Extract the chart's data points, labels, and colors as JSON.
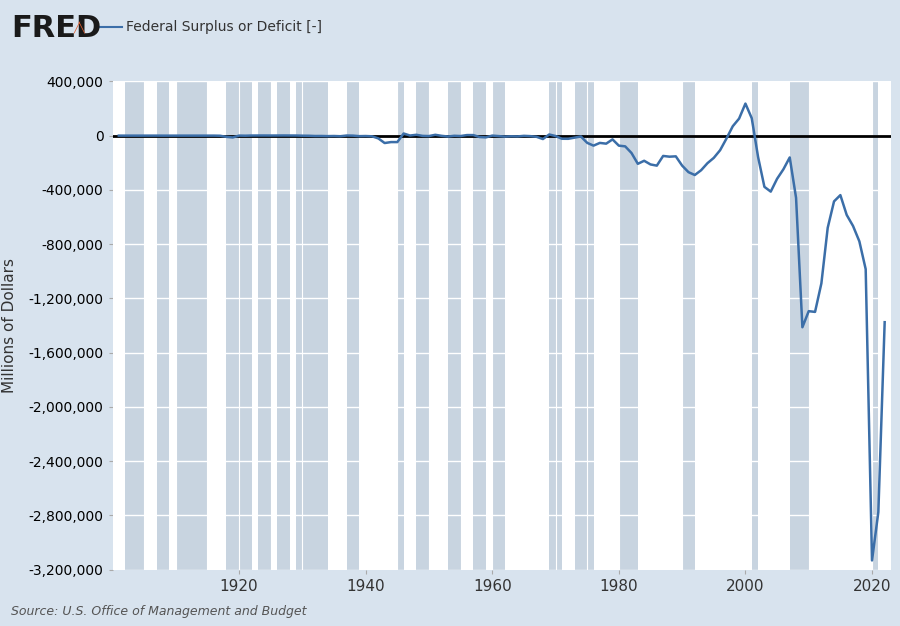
{
  "title": "Federal Surplus or Deficit [-]",
  "ylabel": "Millions of Dollars",
  "source": "Source: U.S. Office of Management and Budget",
  "bg_color": "#d8e3ee",
  "plot_bg_color": "#e8eef5",
  "line_color": "#3b6ea8",
  "zero_line_color": "#000000",
  "grid_color": "#ffffff",
  "recession_color": "#c8d4e0",
  "ylim": [
    -3200000,
    400000
  ],
  "yticks": [
    400000,
    0,
    -400000,
    -800000,
    -1200000,
    -1600000,
    -2000000,
    -2400000,
    -2800000,
    -3200000
  ],
  "xlim": [
    1900,
    2023
  ],
  "xticks": [
    1920,
    1940,
    1960,
    1980,
    2000,
    2020
  ],
  "recession_bands": [
    [
      1902,
      1904
    ],
    [
      1907,
      1908
    ],
    [
      1910,
      1912
    ],
    [
      1913,
      1914
    ],
    [
      1918,
      1919
    ],
    [
      1920,
      1921
    ],
    [
      1923,
      1924
    ],
    [
      1926,
      1927
    ],
    [
      1929,
      1933
    ],
    [
      1937,
      1938
    ],
    [
      1945,
      1945
    ],
    [
      1948,
      1949
    ],
    [
      1953,
      1954
    ],
    [
      1957,
      1958
    ],
    [
      1960,
      1961
    ],
    [
      1969,
      1970
    ],
    [
      1973,
      1975
    ],
    [
      1980,
      1980
    ],
    [
      1981,
      1982
    ],
    [
      1990,
      1991
    ],
    [
      2001,
      2001
    ],
    [
      2007,
      2009
    ],
    [
      2020,
      2020
    ]
  ],
  "data_years": [
    1901,
    1902,
    1903,
    1904,
    1905,
    1906,
    1907,
    1908,
    1909,
    1910,
    1911,
    1912,
    1913,
    1914,
    1915,
    1916,
    1917,
    1918,
    1919,
    1920,
    1921,
    1922,
    1923,
    1924,
    1925,
    1926,
    1927,
    1928,
    1929,
    1930,
    1931,
    1932,
    1933,
    1934,
    1935,
    1936,
    1937,
    1938,
    1939,
    1940,
    1941,
    1942,
    1943,
    1944,
    1945,
    1946,
    1947,
    1948,
    1949,
    1950,
    1951,
    1952,
    1953,
    1954,
    1955,
    1956,
    1957,
    1958,
    1959,
    1960,
    1961,
    1962,
    1963,
    1964,
    1965,
    1966,
    1967,
    1968,
    1969,
    1970,
    1971,
    1972,
    1973,
    1974,
    1975,
    1976,
    1977,
    1978,
    1979,
    1980,
    1981,
    1982,
    1983,
    1984,
    1985,
    1986,
    1987,
    1988,
    1989,
    1990,
    1991,
    1992,
    1993,
    1994,
    1995,
    1996,
    1997,
    1998,
    1999,
    2000,
    2001,
    2002,
    2003,
    2004,
    2005,
    2006,
    2007,
    2008,
    2009,
    2010,
    2011,
    2012,
    2013,
    2014,
    2015,
    2016,
    2017,
    2018,
    2019,
    2020,
    2021,
    2022
  ],
  "data_values": [
    -3,
    3,
    40,
    -23,
    19,
    44,
    77,
    -135,
    -88,
    -18,
    -1,
    3,
    -2,
    -5,
    -63,
    48,
    -853,
    -9032,
    -13363,
    291,
    -509,
    735,
    923,
    963,
    717,
    865,
    1155,
    939,
    734,
    -462,
    -902,
    -2735,
    -2602,
    -3630,
    -2791,
    -4425,
    766,
    -89,
    -3862,
    -2980,
    -4941,
    -20503,
    -54554,
    -47557,
    -47553,
    15698,
    754,
    6195,
    -1803,
    -3119,
    6102,
    -1499,
    -6493,
    -1154,
    -2993,
    4087,
    3947,
    -10340,
    -12849,
    301,
    -3335,
    -7146,
    -4756,
    -5915,
    -1596,
    -3698,
    -8643,
    -25161,
    8449,
    -2842,
    -23033,
    -23373,
    -14908,
    -6135,
    -53242,
    -73732,
    -53659,
    -59185,
    -27726,
    -73835,
    -78976,
    -127977,
    -207802,
    -185367,
    -212308,
    -221227,
    -149730,
    -155178,
    -152639,
    -221036,
    -269238,
    -290321,
    -255051,
    -203186,
    -163952,
    -107431,
    -21884,
    69270,
    125610,
    236241,
    128236,
    -157758,
    -377585,
    -412727,
    -318346,
    -248181,
    -160701,
    -458553,
    -1412688,
    -1294204,
    -1299593,
    -1089357,
    -679544,
    -484619,
    -438499,
    -584651,
    -665753,
    -779132,
    -984388,
    -3131917,
    -2775563,
    -1375469
  ]
}
